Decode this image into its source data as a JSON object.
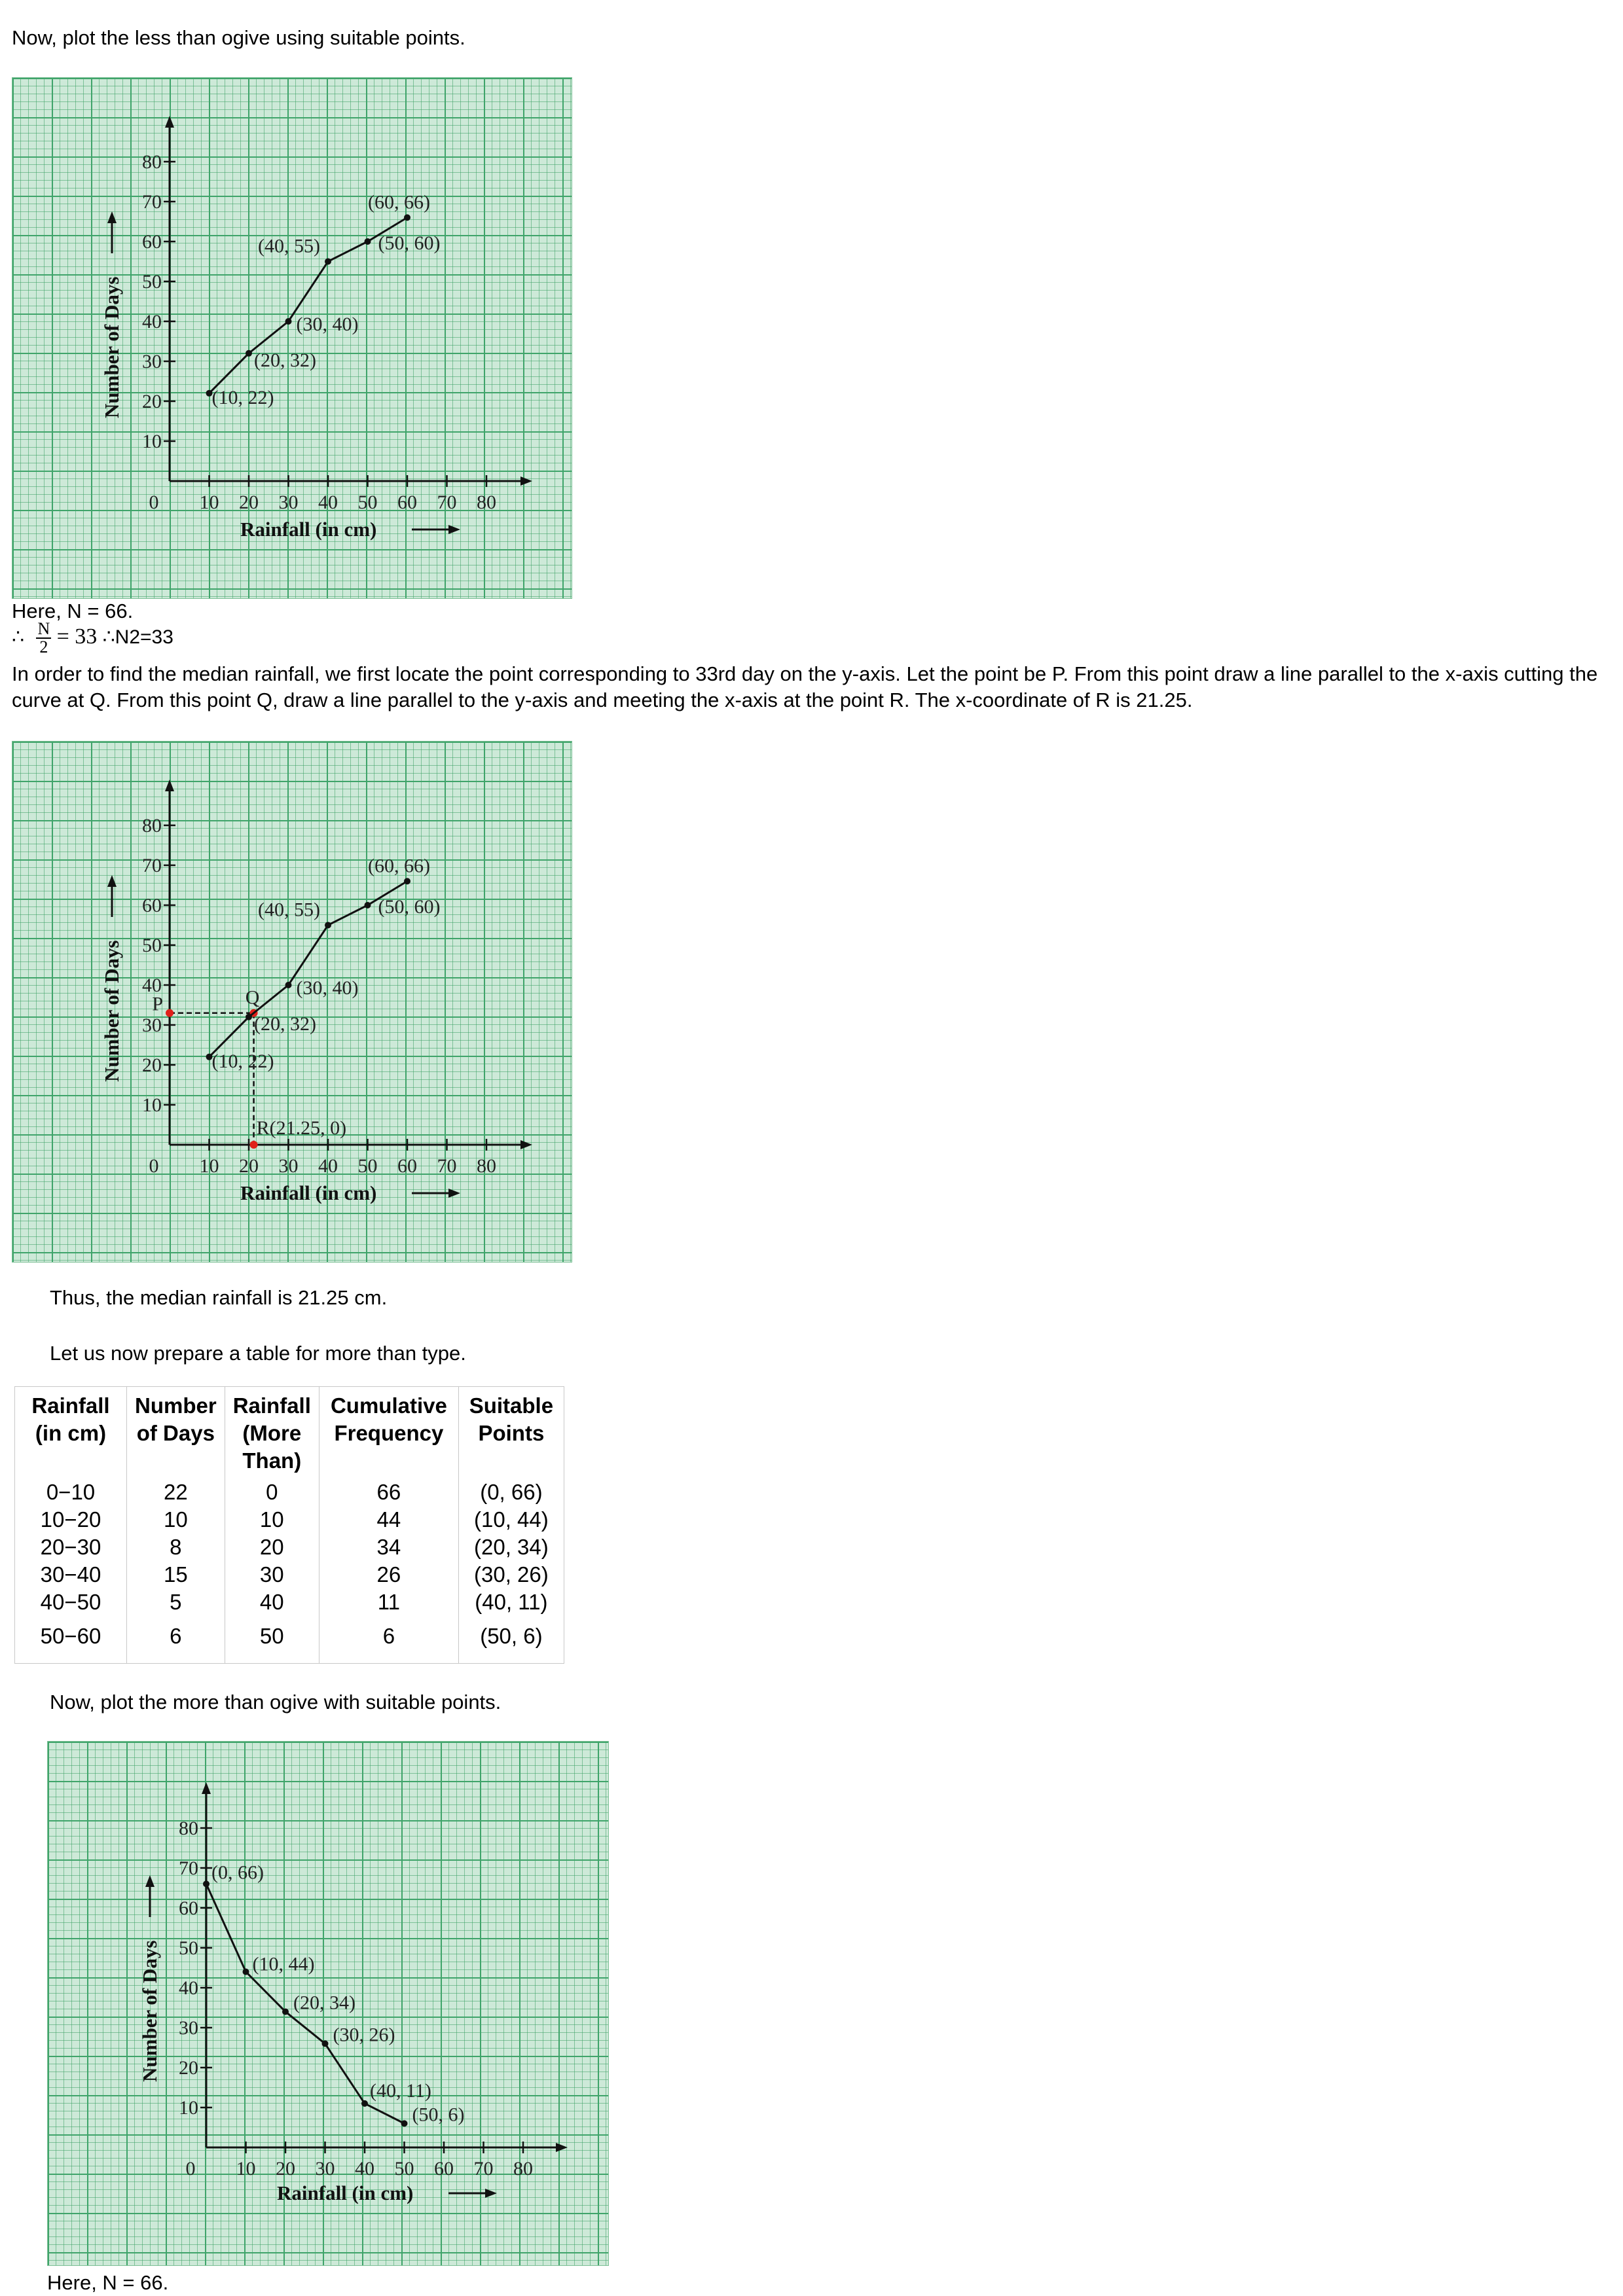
{
  "intro_less": "Now, plot the less than ogive using suitable points.",
  "graph1": {
    "chart_data": {
      "type": "line",
      "ylabel": "Number of Days",
      "xlabel": "Rainfall (in cm)",
      "origin_label": "0",
      "xticks": [
        "10",
        "20",
        "30",
        "40",
        "50",
        "60",
        "70",
        "80"
      ],
      "yticks": [
        "10",
        "20",
        "30",
        "40",
        "50",
        "60",
        "70",
        "80"
      ],
      "x": [
        10,
        20,
        30,
        40,
        50,
        60
      ],
      "y": [
        22,
        32,
        40,
        55,
        60,
        66
      ],
      "point_labels": [
        "(10, 22)",
        "(20, 32)",
        "(30, 40)",
        "(40, 55)",
        "(50, 60)",
        "(60, 66)"
      ]
    }
  },
  "here_n1": "Here, N = 66.",
  "half_n": {
    "therefore": "∴",
    "num": "N",
    "den": "2",
    "eq": "= 33",
    "alt": "∴N2=33"
  },
  "median_text": "In order to find the median rainfall, we first locate the point corresponding to 33rd day on the y-axis. Let the point be P. From this point draw a line parallel to the x-axis cutting the curve at Q. From this point Q, draw a line parallel to the y-axis and meeting the x-axis at the point R. The x-coordinate of R is 21.25.",
  "graph2": {
    "chart_data": {
      "type": "line",
      "ylabel": "Number of Days",
      "xlabel": "Rainfall (in cm)",
      "origin_label": "0",
      "xticks": [
        "10",
        "20",
        "30",
        "40",
        "50",
        "60",
        "70",
        "80"
      ],
      "yticks": [
        "10",
        "20",
        "30",
        "40",
        "50",
        "60",
        "70",
        "80"
      ],
      "x": [
        10,
        20,
        30,
        40,
        50,
        60
      ],
      "y": [
        22,
        32,
        40,
        55,
        60,
        66
      ],
      "point_labels": [
        "(10, 22)",
        "(20, 32)",
        "(30, 40)",
        "(40, 55)",
        "(50, 60)",
        "(60, 66)"
      ],
      "median_point": {
        "x": 21.25,
        "y": 33
      },
      "label_p": "P",
      "label_q": "Q",
      "label_r": "R(21.25, 0)"
    }
  },
  "median_result": "Thus, the median rainfall is 21.25 cm.",
  "table_intro": "Let us now prepare a table for more than type.",
  "table": {
    "headers": [
      "Rainfall (in cm)",
      "Number of Days",
      "Rainfall (More Than)",
      "Cumulative Frequency",
      "Suitable Points"
    ],
    "rows": [
      [
        "0−10",
        "22",
        "0",
        "66",
        "(0, 66)"
      ],
      [
        "10−20",
        "10",
        "10",
        "44",
        "(10, 44)"
      ],
      [
        "20−30",
        "8",
        "20",
        "34",
        "(20, 34)"
      ],
      [
        "30−40",
        "15",
        "30",
        "26",
        "(30, 26)"
      ],
      [
        "40−50",
        "5",
        "40",
        "11",
        "(40, 11)"
      ],
      [
        "50−60",
        "6",
        "50",
        "6",
        "(50, 6)"
      ]
    ]
  },
  "intro_more": "Now, plot the more than ogive with suitable points.",
  "graph3": {
    "chart_data": {
      "type": "line",
      "ylabel": "Number of Days",
      "xlabel": "Rainfall (in cm)",
      "origin_label": "0",
      "xticks": [
        "10",
        "20",
        "30",
        "40",
        "50",
        "60",
        "70",
        "80"
      ],
      "yticks": [
        "10",
        "20",
        "30",
        "40",
        "50",
        "60",
        "70",
        "80"
      ],
      "x": [
        0,
        10,
        20,
        30,
        40,
        50
      ],
      "y": [
        66,
        44,
        34,
        26,
        11,
        6
      ],
      "point_labels": [
        "(0, 66)",
        "(10, 44)",
        "(20, 34)",
        "(30, 26)",
        "(40, 11)",
        "(50, 6)"
      ]
    }
  },
  "here_n2": "Here, N = 66."
}
